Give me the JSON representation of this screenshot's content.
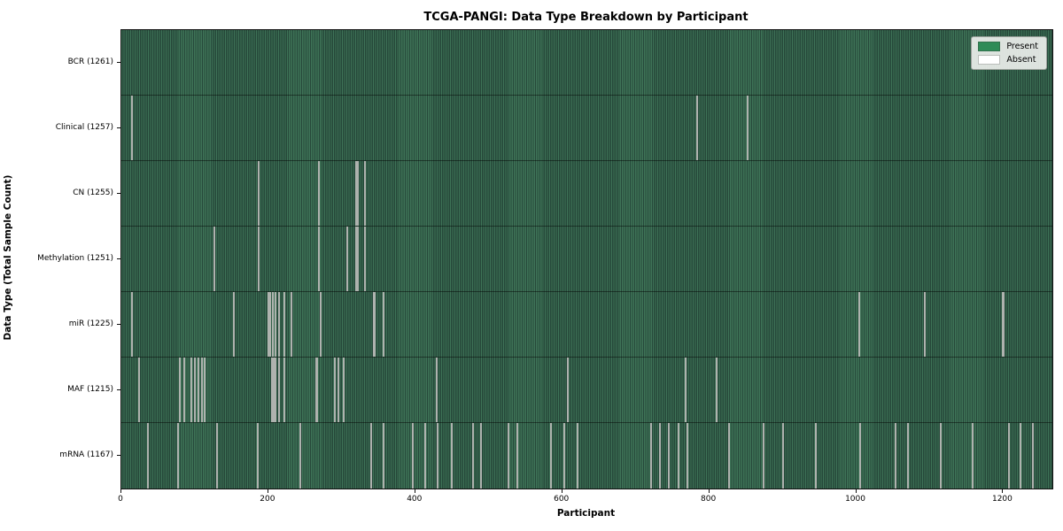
{
  "title": "TCGA-PANGI: Data Type Breakdown by Participant",
  "axes": {
    "xlabel": "Participant",
    "ylabel": "Data Type (Total Sample Count)"
  },
  "legend": {
    "items": [
      {
        "label": "Present",
        "color": "#2e8b57"
      },
      {
        "label": "Absent",
        "color": "#ffffff"
      }
    ]
  },
  "chart_data": {
    "type": "heatmap",
    "title": "TCGA-PANGI: Data Type Breakdown by Participant",
    "xlabel": "Participant",
    "ylabel": "Data Type (Total Sample Count)",
    "grid": false,
    "legend_position": "upper right",
    "x_range": [
      0,
      1267
    ],
    "x_ticks": [
      0,
      200,
      400,
      600,
      800,
      1000,
      1200
    ],
    "total_participants": 1267,
    "rows": [
      {
        "name": "BCR",
        "label": "BCR (1261)",
        "present_count": 1261,
        "absent_positions": []
      },
      {
        "name": "Clinical",
        "label": "Clinical (1257)",
        "present_count": 1257,
        "absent_positions": [
          15,
          783,
          852
        ]
      },
      {
        "name": "CN",
        "label": "CN (1255)",
        "present_count": 1255,
        "absent_positions": [
          187,
          269,
          320,
          322,
          331
        ]
      },
      {
        "name": "Methylation",
        "label": "Methylation (1251)",
        "present_count": 1251,
        "absent_positions": [
          126,
          187,
          269,
          307,
          320,
          322,
          331
        ]
      },
      {
        "name": "miR",
        "label": "miR (1225)",
        "present_count": 1225,
        "absent_positions": [
          14,
          153,
          200,
          203,
          206,
          210,
          215,
          222,
          231,
          271,
          343,
          345,
          357,
          1004,
          1094,
          1199,
          1201
        ]
      },
      {
        "name": "MAF",
        "label": "MAF (1215)",
        "present_count": 1215,
        "absent_positions": [
          24,
          80,
          85,
          95,
          100,
          105,
          110,
          113,
          205,
          207,
          210,
          215,
          222,
          265,
          267,
          290,
          295,
          303,
          429,
          607,
          768,
          810
        ]
      },
      {
        "name": "mRNA",
        "label": "mRNA (1167)",
        "present_count": 1167,
        "absent_positions": [
          36,
          77,
          130,
          186,
          243,
          340,
          357,
          397,
          413,
          430,
          450,
          478,
          490,
          527,
          539,
          585,
          603,
          621,
          721,
          733,
          745,
          758,
          770,
          827,
          874,
          900,
          945,
          1005,
          1054,
          1070,
          1115,
          1159,
          1208,
          1224,
          1240
        ]
      }
    ],
    "colors": {
      "present": "#2e8b57",
      "present_light": "#3e7357",
      "present_dark": "#26483a",
      "absent": "#ffffff",
      "absent_stripe": "#c0c5c0",
      "row_divider": "rgba(0,0,0,0.45)"
    }
  }
}
